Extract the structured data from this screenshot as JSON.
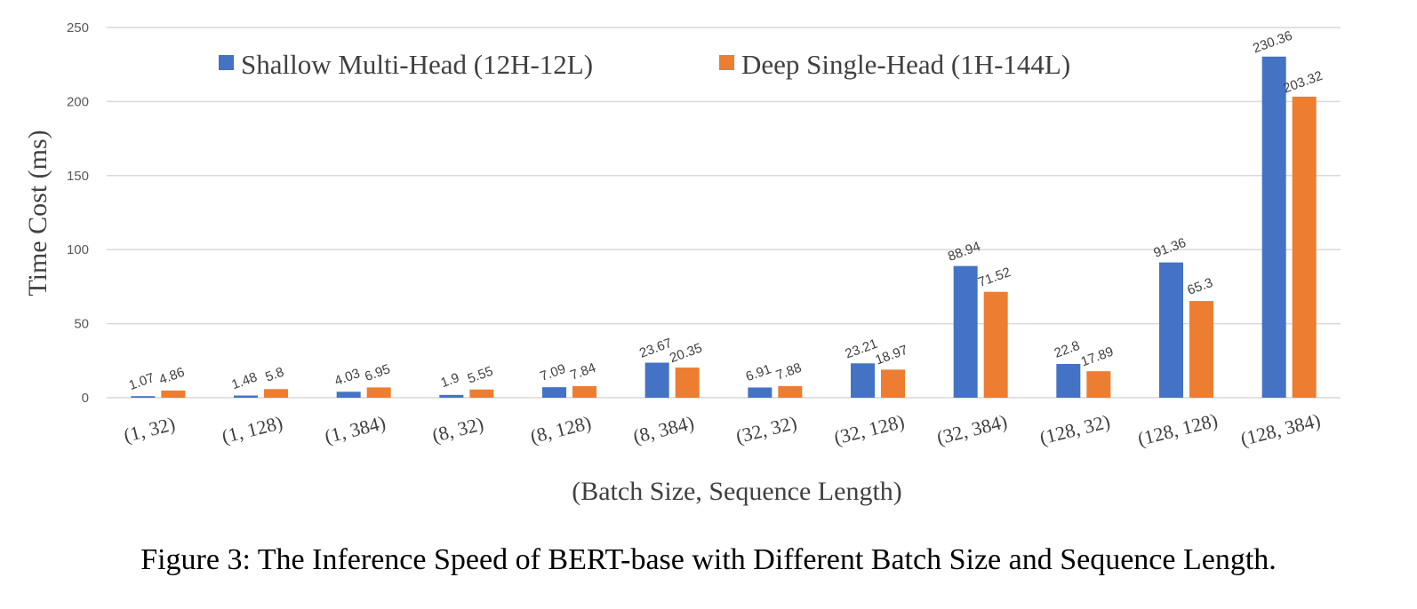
{
  "chart_data": {
    "type": "bar",
    "categories": [
      "(1, 32)",
      "(1, 128)",
      "(1, 384)",
      "(8, 32)",
      "(8, 128)",
      "(8, 384)",
      "(32, 32)",
      "(32, 128)",
      "(32, 384)",
      "(128, 32)",
      "(128, 128)",
      "(128, 384)"
    ],
    "series": [
      {
        "name": "Shallow Multi-Head (12H-12L)",
        "color": "#4472C4",
        "values": [
          1.07,
          1.48,
          4.03,
          1.9,
          7.09,
          23.67,
          6.91,
          23.21,
          88.94,
          22.8,
          91.36,
          230.36
        ]
      },
      {
        "name": "Deep Single-Head (1H-144L)",
        "color": "#ED7D31",
        "values": [
          4.86,
          5.8,
          6.95,
          5.55,
          7.84,
          20.35,
          7.88,
          18.97,
          71.52,
          17.89,
          65.3,
          203.32
        ]
      }
    ],
    "data_labels": {
      "series0": [
        "1.07",
        "1.48",
        "4.03",
        "1.9",
        "7.09",
        "23.67",
        "6.91",
        "23.21",
        "88.94",
        "22.8",
        "91.36",
        "230.36"
      ],
      "series1": [
        "4.86",
        "5.8",
        "6.95",
        "5.55",
        "7.84",
        "20.35",
        "7.88",
        "18.97",
        "71.52",
        "17.89",
        "65.3",
        "203.32"
      ]
    },
    "xlabel": "(Batch Size, Sequence Length)",
    "ylabel": "Time Cost (ms)",
    "ylim": [
      0,
      250
    ],
    "yticks": [
      0,
      50,
      100,
      150,
      200,
      250
    ],
    "grid": true,
    "legend_position": "top-center"
  },
  "caption": "Figure 3: The Inference Speed of BERT-base with Different Batch Size and Sequence Length."
}
